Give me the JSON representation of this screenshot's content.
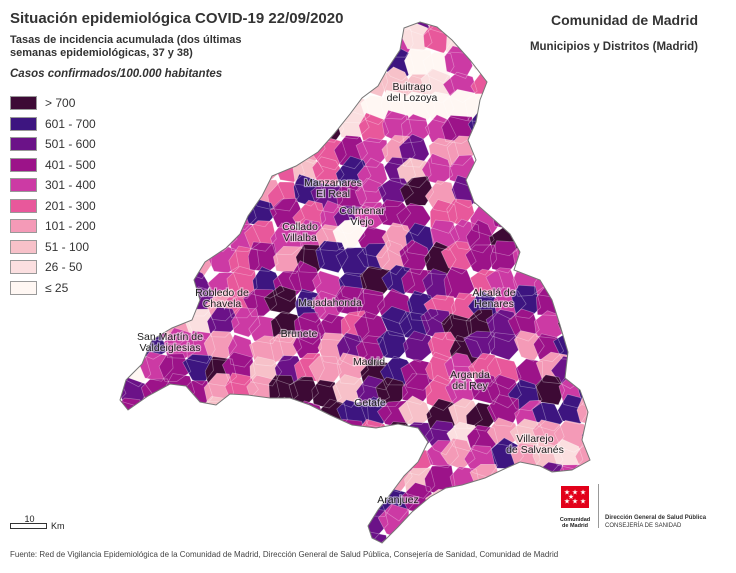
{
  "header": {
    "title": "Situación epidemiológica COVID-19  22/09/2020",
    "subtitle": "Tasas de incidencia acumulada (dos últimas semanas epidemiológicas, 37 y 38)",
    "units": "Casos confirmados/100.000 habitantes",
    "region": "Comunidad de Madrid",
    "region_sub": "Municipios y Distritos (Madrid)"
  },
  "legend": [
    {
      "label": "> 700",
      "color": "#3d0a35"
    },
    {
      "label": "601 - 700",
      "color": "#3d1580"
    },
    {
      "label": "501 - 600",
      "color": "#6b1288"
    },
    {
      "label": "401 - 500",
      "color": "#9c1389"
    },
    {
      "label": "301 - 400",
      "color": "#cc3aa4"
    },
    {
      "label": "201 - 300",
      "color": "#e8589b"
    },
    {
      "label": "101 - 200",
      "color": "#f49ab7"
    },
    {
      "label": "51 - 100",
      "color": "#f7c1c9"
    },
    {
      "label": "26 - 50",
      "color": "#fbdfe0"
    },
    {
      "label": "≤ 25",
      "color": "#fff7f3"
    }
  ],
  "places": [
    {
      "name": "Buitrago\ndel Lozoya"
    },
    {
      "name": "Manzanares\nEl Real"
    },
    {
      "name": "Colmenar\nViejo"
    },
    {
      "name": "Collado\nVillalba"
    },
    {
      "name": "Robledo de\nChavela"
    },
    {
      "name": "Majadahonda"
    },
    {
      "name": "Alcalá de\nHenares"
    },
    {
      "name": "Brunete"
    },
    {
      "name": "San Martín de\nValdeiglesias"
    },
    {
      "name": "Madrid"
    },
    {
      "name": "Arganda\ndel Rey"
    },
    {
      "name": "Getafe"
    },
    {
      "name": "Villarejo\nde Salvanés"
    },
    {
      "name": "Aranjuez"
    }
  ],
  "scale": {
    "value": "10",
    "unit": "Km"
  },
  "footer": "Fuente: Red de Vigilancia Epidemiológica de la Comunidad de Madrid, Dirección General de Salud Pública, Consejería de Sanidad, Comunidad de Madrid",
  "logo": {
    "caption_line1": "Comunidad",
    "caption_line2": "de Madrid",
    "dept_line1": "Dirección General de Salud Pública",
    "dept_line2": "CONSEJERÍA DE SANIDAD",
    "flag_color": "#e2001a"
  }
}
